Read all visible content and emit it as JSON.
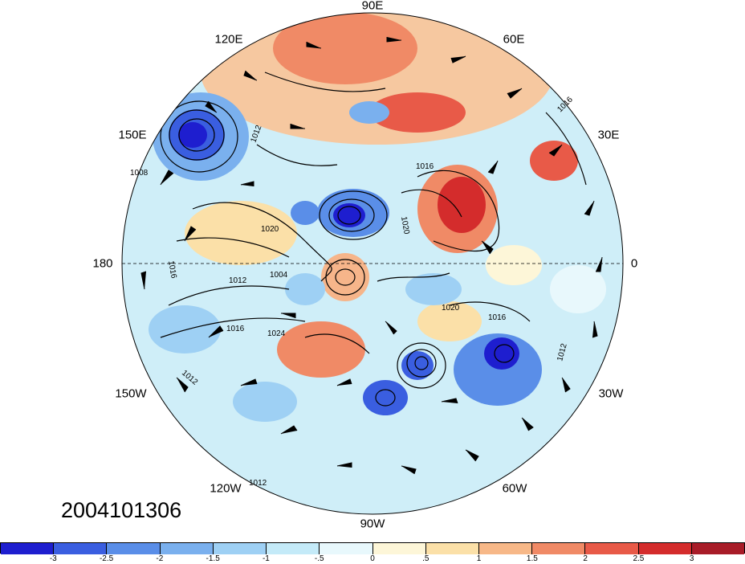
{
  "date_stamp": "2004101306",
  "longitude_labels": {
    "e90": "90E",
    "e60": "60E",
    "e30": "30E",
    "zero": "0",
    "w30": "30W",
    "w60": "60W",
    "w90": "90W",
    "w120": "120W",
    "w150": "150W",
    "d180": "180",
    "e150": "150E",
    "e120": "120E"
  },
  "contour_labels": [
    "1016",
    "1012",
    "1008",
    "1020",
    "1016",
    "1012",
    "1004",
    "1016",
    "1024",
    "1020",
    "1016",
    "1012",
    "1012",
    "1016",
    "1012",
    "1020"
  ],
  "colorbar": {
    "colors": [
      "#1e1ecf",
      "#3a5ee0",
      "#5a8ee8",
      "#7ab0ee",
      "#9ed0f4",
      "#c4eaf8",
      "#e8f8fc",
      "#fdf6d8",
      "#fbe0a8",
      "#f7b888",
      "#f08a66",
      "#e85a48",
      "#d42c2c",
      "#a81c28"
    ],
    "labels": [
      "-3",
      "-2.5",
      "-2",
      "-1.5",
      "-1",
      "-.5",
      "0",
      ".5",
      "1",
      "1.5",
      "2",
      "2.5",
      "3"
    ]
  }
}
